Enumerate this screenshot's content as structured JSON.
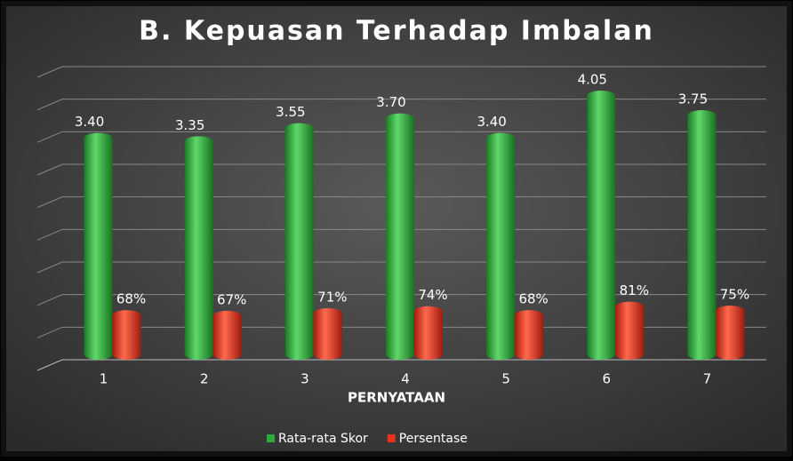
{
  "chart_data": {
    "type": "bar",
    "title": "B. Kepuasan Terhadap Imbalan",
    "x_label": "PERNYATAAN",
    "categories": [
      "1",
      "2",
      "3",
      "4",
      "5",
      "6",
      "7"
    ],
    "series": [
      {
        "name": "Rata-rata Skor",
        "color": "#2eaa3c",
        "values": [
          3.4,
          3.35,
          3.55,
          3.7,
          3.4,
          4.05,
          3.75
        ],
        "value_labels": [
          "3.40",
          "3.35",
          "3.55",
          "3.70",
          "3.40",
          "4.05",
          "3.75"
        ]
      },
      {
        "name": "Persentase",
        "color": "#e8321e",
        "values": [
          0.68,
          0.67,
          0.71,
          0.74,
          0.68,
          0.81,
          0.75
        ],
        "value_labels": [
          "68%",
          "67%",
          "71%",
          "74%",
          "68%",
          "81%",
          "75%"
        ]
      }
    ],
    "ylim": [
      0,
      4.5
    ],
    "yticks": [
      0,
      0.5,
      1,
      1.5,
      2,
      2.5,
      3,
      3.5,
      4,
      4.5
    ],
    "grid": true,
    "legend": "bottom"
  }
}
